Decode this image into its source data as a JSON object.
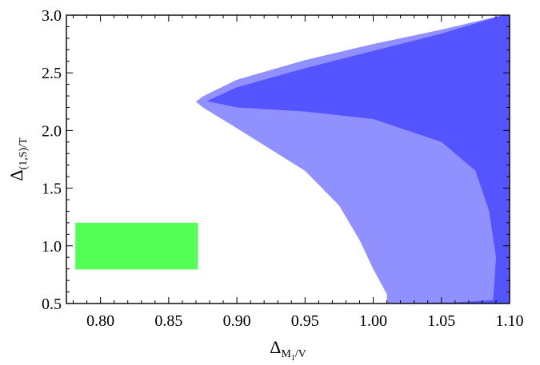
{
  "chart_data": {
    "type": "area",
    "xlabel": {
      "main": "Δ",
      "sub": "M",
      "subsub": "1",
      "tail": "/V"
    },
    "ylabel": {
      "main": "Δ",
      "sub": "(1,S)/T"
    },
    "xlim": [
      0.775,
      1.1
    ],
    "ylim": [
      0.5,
      3.0
    ],
    "xticks": [
      0.8,
      0.85,
      0.9,
      0.95,
      1.0,
      1.05,
      1.1
    ],
    "xtick_labels": [
      "0.80",
      "0.85",
      "0.90",
      "0.95",
      "1.00",
      "1.05",
      "1.10"
    ],
    "yticks": [
      0.5,
      1.0,
      1.5,
      2.0,
      2.5,
      3.0
    ],
    "ytick_labels": [
      "0.5",
      "1.0",
      "1.5",
      "2.0",
      "2.5",
      "3.0"
    ],
    "grid": false,
    "regions": [
      {
        "color": "#9090ff",
        "points": [
          [
            1.1,
            3.0
          ],
          [
            1.095,
            3.0
          ],
          [
            1.05,
            2.875
          ],
          [
            1.0,
            2.75
          ],
          [
            0.95,
            2.61
          ],
          [
            0.9,
            2.44
          ],
          [
            0.875,
            2.295
          ],
          [
            0.87,
            2.25
          ],
          [
            0.875,
            2.2
          ],
          [
            0.9,
            2.02
          ],
          [
            0.95,
            1.65
          ],
          [
            0.975,
            1.35
          ],
          [
            0.99,
            1.05
          ],
          [
            1.0,
            0.8
          ],
          [
            1.01,
            0.58
          ],
          [
            1.01,
            0.5
          ],
          [
            1.1,
            0.5
          ]
        ]
      },
      {
        "color": "#5555ff",
        "points": [
          [
            1.1,
            3.0
          ],
          [
            1.095,
            3.0
          ],
          [
            1.05,
            2.84
          ],
          [
            1.0,
            2.69
          ],
          [
            0.95,
            2.54
          ],
          [
            0.9,
            2.375
          ],
          [
            0.878,
            2.255
          ],
          [
            0.9,
            2.2
          ],
          [
            0.95,
            2.165
          ],
          [
            1.0,
            2.1
          ],
          [
            1.05,
            1.9
          ],
          [
            1.075,
            1.65
          ],
          [
            1.085,
            1.3
          ],
          [
            1.09,
            0.9
          ],
          [
            1.088,
            0.53
          ],
          [
            1.06,
            0.51
          ],
          [
            1.005,
            0.5
          ],
          [
            1.1,
            0.5
          ]
        ]
      },
      {
        "color": "#55ff55",
        "points": [
          [
            0.7815,
            0.795
          ],
          [
            0.8715,
            0.795
          ],
          [
            0.8715,
            1.2
          ],
          [
            0.7815,
            1.2
          ]
        ]
      }
    ]
  }
}
